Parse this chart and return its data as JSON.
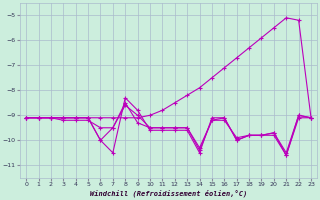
{
  "xlabel": "Windchill (Refroidissement éolien,°C)",
  "bg_color": "#cceedd",
  "grid_color": "#aabbcc",
  "line_color": "#bb00bb",
  "ylim": [
    -11.5,
    -4.5
  ],
  "xlim": [
    -0.5,
    23.5
  ],
  "yticks": [
    -5,
    -6,
    -7,
    -8,
    -9,
    -10,
    -11
  ],
  "xticks": [
    0,
    1,
    2,
    3,
    4,
    5,
    6,
    7,
    8,
    9,
    10,
    11,
    12,
    13,
    14,
    15,
    16,
    17,
    18,
    19,
    20,
    21,
    22,
    23
  ],
  "series": [
    [
      -9.1,
      -9.1,
      -9.1,
      -9.1,
      -9.1,
      -9.1,
      -9.1,
      -9.1,
      -9.1,
      -9.1,
      -9.0,
      -8.8,
      -8.5,
      -8.2,
      -7.9,
      -7.5,
      -7.1,
      -6.7,
      -6.3,
      -5.9,
      -5.5,
      -5.1,
      -5.2,
      -9.1
    ],
    [
      -9.1,
      -9.1,
      -9.1,
      -9.1,
      -9.1,
      -9.1,
      -10.0,
      -9.5,
      -8.5,
      -9.3,
      -9.5,
      -9.5,
      -9.5,
      -9.5,
      -10.4,
      -9.2,
      -9.1,
      -10.0,
      -9.8,
      -9.8,
      -9.7,
      -10.6,
      -9.1,
      -9.1
    ],
    [
      -9.1,
      -9.1,
      -9.1,
      -9.1,
      -9.1,
      -9.1,
      -10.0,
      -10.5,
      -8.3,
      -8.8,
      -9.6,
      -9.6,
      -9.6,
      -9.6,
      -10.5,
      -9.1,
      -9.1,
      -10.0,
      -9.8,
      -9.8,
      -9.8,
      -10.6,
      -9.0,
      -9.1
    ],
    [
      -9.1,
      -9.1,
      -9.1,
      -9.2,
      -9.2,
      -9.2,
      -9.5,
      -9.5,
      -8.6,
      -9.0,
      -9.5,
      -9.5,
      -9.5,
      -9.5,
      -10.3,
      -9.2,
      -9.2,
      -9.9,
      -9.8,
      -9.8,
      -9.7,
      -10.5,
      -9.0,
      -9.1
    ]
  ]
}
